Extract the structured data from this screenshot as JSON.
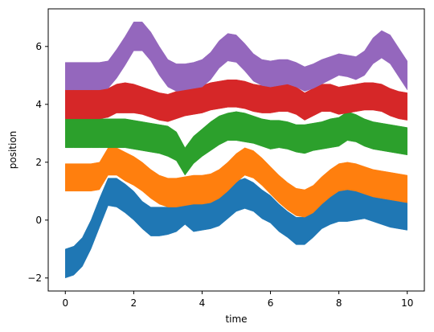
{
  "chart_data": {
    "type": "area",
    "title": "",
    "xlabel": "time",
    "ylabel": "position",
    "xlim": [
      -0.5,
      10.5
    ],
    "ylim": [
      -2.45,
      7.3
    ],
    "xticks": [
      0,
      2,
      4,
      6,
      8,
      10
    ],
    "yticks": [
      -2,
      0,
      2,
      4,
      6
    ],
    "grid": false,
    "legend": "none",
    "x": [
      0,
      0.25,
      0.5,
      0.75,
      1.0,
      1.25,
      1.5,
      1.75,
      2.0,
      2.25,
      2.5,
      2.75,
      3.0,
      3.25,
      3.5,
      3.75,
      4.0,
      4.25,
      4.5,
      4.75,
      5.0,
      5.25,
      5.5,
      5.75,
      6.0,
      6.25,
      6.5,
      6.75,
      7.0,
      7.25,
      7.5,
      7.75,
      8.0,
      8.25,
      8.5,
      8.75,
      9.0,
      9.25,
      9.5,
      9.75,
      10.0
    ],
    "series": [
      {
        "color": "#1f77b4",
        "lower": [
          -2.0,
          -1.9,
          -1.6,
          -1.0,
          -0.25,
          0.5,
          0.45,
          0.25,
          0.0,
          -0.3,
          -0.55,
          -0.55,
          -0.5,
          -0.4,
          -0.15,
          -0.4,
          -0.35,
          -0.3,
          -0.2,
          0.05,
          0.3,
          0.4,
          0.3,
          0.05,
          -0.1,
          -0.4,
          -0.6,
          -0.85,
          -0.85,
          -0.6,
          -0.3,
          -0.15,
          -0.05,
          -0.05,
          0.0,
          0.05,
          -0.05,
          -0.15,
          -0.25,
          -0.3,
          -0.35
        ],
        "upper": [
          -1.0,
          -0.9,
          -0.6,
          0.0,
          0.75,
          1.45,
          1.45,
          1.25,
          1.0,
          0.65,
          0.45,
          0.45,
          0.45,
          0.55,
          0.75,
          0.55,
          0.6,
          0.7,
          0.85,
          1.1,
          1.35,
          1.45,
          1.3,
          1.05,
          0.85,
          0.55,
          0.3,
          0.1,
          0.1,
          0.4,
          0.75,
          0.95,
          1.1,
          1.25,
          1.4,
          1.3,
          1.1,
          0.95,
          0.8,
          0.7,
          0.65
        ]
      },
      {
        "color": "#ff7f0e",
        "lower": [
          1.0,
          1.0,
          1.0,
          1.0,
          1.05,
          1.55,
          1.55,
          1.35,
          1.2,
          1.0,
          0.75,
          0.55,
          0.45,
          0.45,
          0.5,
          0.55,
          0.55,
          0.6,
          0.75,
          1.0,
          1.3,
          1.55,
          1.45,
          1.2,
          0.9,
          0.6,
          0.35,
          0.15,
          0.1,
          0.25,
          0.55,
          0.8,
          1.0,
          1.05,
          1.0,
          0.9,
          0.8,
          0.75,
          0.7,
          0.65,
          0.6
        ],
        "upper": [
          1.95,
          1.95,
          1.95,
          1.95,
          2.0,
          2.5,
          2.5,
          2.35,
          2.2,
          2.0,
          1.75,
          1.55,
          1.45,
          1.45,
          1.5,
          1.55,
          1.55,
          1.6,
          1.75,
          2.0,
          2.3,
          2.5,
          2.4,
          2.15,
          1.85,
          1.55,
          1.3,
          1.1,
          1.05,
          1.2,
          1.5,
          1.75,
          1.95,
          2.0,
          1.95,
          1.85,
          1.75,
          1.7,
          1.65,
          1.6,
          1.55
        ]
      },
      {
        "color": "#2ca02c",
        "lower": [
          2.5,
          2.5,
          2.5,
          2.5,
          2.5,
          2.5,
          2.5,
          2.5,
          2.45,
          2.4,
          2.35,
          2.3,
          2.2,
          2.05,
          1.55,
          1.95,
          2.2,
          2.4,
          2.6,
          2.75,
          2.75,
          2.7,
          2.65,
          2.55,
          2.45,
          2.5,
          2.45,
          2.35,
          2.3,
          2.4,
          2.45,
          2.5,
          2.55,
          2.75,
          2.7,
          2.55,
          2.45,
          2.4,
          2.35,
          2.3,
          2.25
        ],
        "upper": [
          3.5,
          3.5,
          3.5,
          3.5,
          3.5,
          3.5,
          3.5,
          3.5,
          3.45,
          3.4,
          3.35,
          3.3,
          3.25,
          3.05,
          2.5,
          2.9,
          3.15,
          3.4,
          3.6,
          3.7,
          3.75,
          3.7,
          3.6,
          3.5,
          3.45,
          3.45,
          3.4,
          3.3,
          3.3,
          3.35,
          3.4,
          3.5,
          3.55,
          3.75,
          3.65,
          3.5,
          3.4,
          3.35,
          3.3,
          3.25,
          3.2
        ]
      },
      {
        "color": "#d62728",
        "lower": [
          3.5,
          3.5,
          3.5,
          3.5,
          3.5,
          3.55,
          3.7,
          3.7,
          3.7,
          3.65,
          3.55,
          3.45,
          3.4,
          3.5,
          3.6,
          3.65,
          3.7,
          3.8,
          3.85,
          3.9,
          3.9,
          3.85,
          3.75,
          3.7,
          3.7,
          3.75,
          3.75,
          3.65,
          3.45,
          3.6,
          3.75,
          3.75,
          3.65,
          3.7,
          3.75,
          3.8,
          3.8,
          3.75,
          3.6,
          3.5,
          3.45
        ],
        "upper": [
          4.5,
          4.5,
          4.5,
          4.5,
          4.5,
          4.55,
          4.7,
          4.75,
          4.7,
          4.6,
          4.5,
          4.4,
          4.35,
          4.45,
          4.55,
          4.6,
          4.65,
          4.75,
          4.8,
          4.85,
          4.85,
          4.8,
          4.7,
          4.65,
          4.65,
          4.7,
          4.7,
          4.6,
          4.4,
          4.55,
          4.7,
          4.7,
          4.6,
          4.65,
          4.7,
          4.75,
          4.75,
          4.7,
          4.55,
          4.45,
          4.4
        ]
      },
      {
        "color": "#9467bd",
        "lower": [
          4.5,
          4.5,
          4.5,
          4.5,
          4.5,
          4.55,
          4.9,
          5.35,
          5.85,
          5.85,
          5.5,
          5.0,
          4.6,
          4.45,
          4.5,
          4.55,
          4.6,
          4.85,
          5.25,
          5.5,
          5.45,
          5.15,
          4.8,
          4.65,
          4.6,
          4.65,
          4.7,
          4.6,
          4.45,
          4.55,
          4.7,
          4.85,
          5.0,
          4.95,
          4.85,
          5.0,
          5.4,
          5.6,
          5.4,
          4.95,
          4.5
        ],
        "upper": [
          5.45,
          5.45,
          5.45,
          5.45,
          5.45,
          5.5,
          5.9,
          6.35,
          6.85,
          6.85,
          6.5,
          6.0,
          5.55,
          5.4,
          5.4,
          5.45,
          5.55,
          5.8,
          6.2,
          6.45,
          6.4,
          6.1,
          5.75,
          5.55,
          5.5,
          5.55,
          5.55,
          5.45,
          5.3,
          5.4,
          5.55,
          5.65,
          5.75,
          5.7,
          5.65,
          5.85,
          6.3,
          6.55,
          6.4,
          5.95,
          5.5
        ]
      }
    ]
  }
}
